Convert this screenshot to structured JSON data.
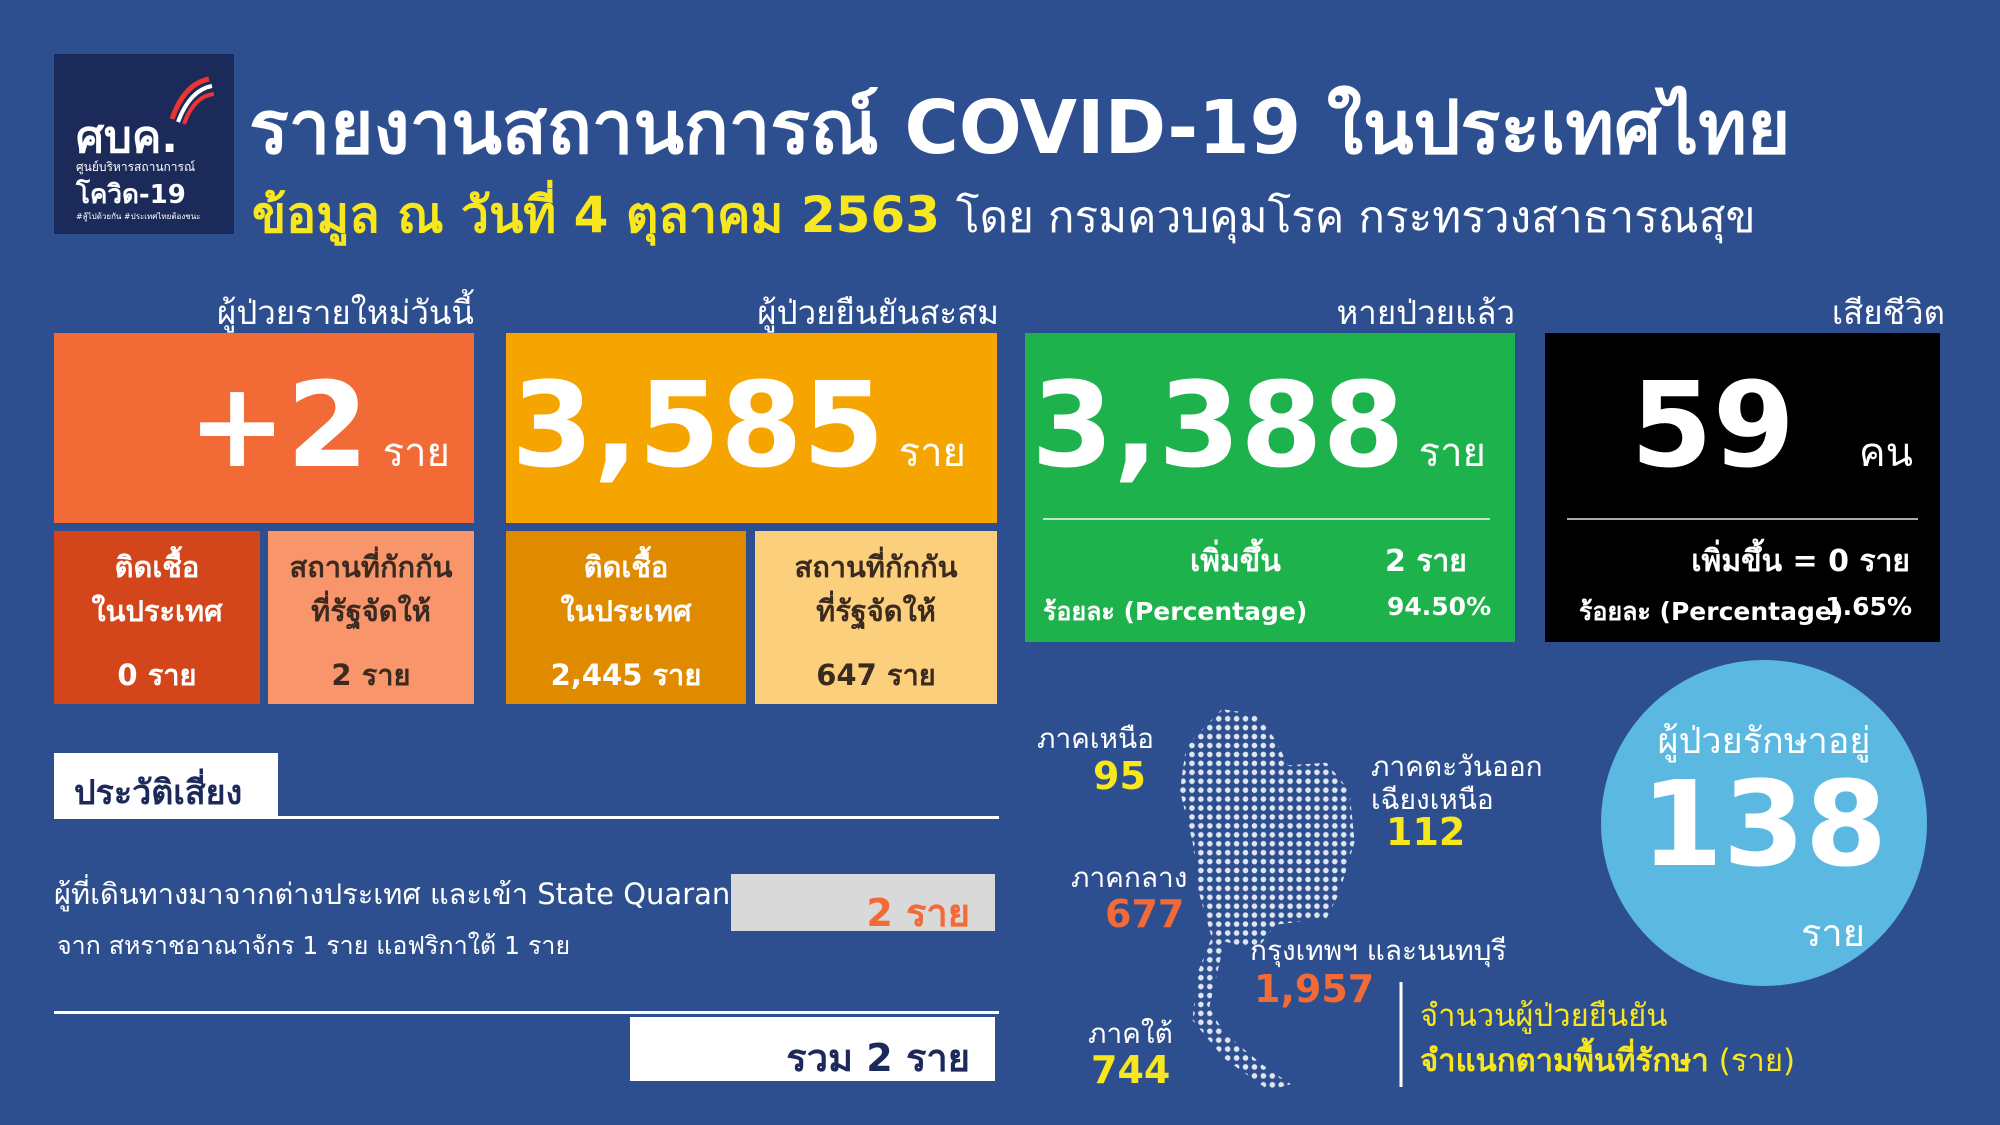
{
  "header": {
    "logo": {
      "title": "ศบค.",
      "subtitle": "ศูนย์บริหารสถานการณ์",
      "name": "โควิด-19",
      "tagline": "#สู้ไปด้วยกัน #ประเทศไทยต้องชนะ"
    },
    "title": "รายงานสถานการณ์ COVID-19 ในประเทศไทย",
    "date": "ข้อมูล ณ วันที่ 4 ตุลาคม 2563",
    "source": "โดย กรมควบคุมโรค กระทรวงสาธารณสุข"
  },
  "new_cases": {
    "label": "ผู้ป่วยรายใหม่วันนี้",
    "value": "+2",
    "unit": "ราย",
    "breakdown": [
      {
        "label": [
          "ติดเชื้อ",
          "ในประเทศ"
        ],
        "value": "0 ราย"
      },
      {
        "label": [
          "สถานที่กักกัน",
          "ที่รัฐจัดให้"
        ],
        "value": "2 ราย"
      }
    ]
  },
  "confirmed": {
    "label": "ผู้ป่วยยืนยันสะสม",
    "value": "3,585",
    "unit": "ราย",
    "breakdown": [
      {
        "label": [
          "ติดเชื้อ",
          "ในประเทศ"
        ],
        "value": "2,445 ราย"
      },
      {
        "label": [
          "สถานที่กักกัน",
          "ที่รัฐจัดให้"
        ],
        "value": "647 ราย"
      }
    ]
  },
  "recovered": {
    "label": "หายป่วยแล้ว",
    "value": "3,388",
    "unit": "ราย",
    "increase_label": "เพิ่มขึ้น",
    "increase": "2 ราย",
    "percent_label": "ร้อยละ (Percentage)",
    "percent": "94.50%"
  },
  "deaths": {
    "label": "เสียชีวิต",
    "value": "59",
    "unit": "คน",
    "increase": "เพิ่มขึ้น = 0 ราย",
    "percent_label": "ร้อยละ (Percentage)",
    "percent": "1.65%"
  },
  "risk": {
    "title": "ประวัติเสี่ยง",
    "item": "ผู้ที่เดินทางมาจากต่างประเทศ และเข้า State Quarantine",
    "item_value": "2 ราย",
    "item_detail": "จาก สหราชอาณาจักร 1 ราย แอฟริกาใต้ 1 ราย",
    "total": "รวม 2 ราย"
  },
  "regions": {
    "items": [
      {
        "name": [
          "ภาคเหนือ"
        ],
        "value": "95"
      },
      {
        "name": [
          "ภาคตะวันออก",
          "เฉียงเหนือ"
        ],
        "value": "112"
      },
      {
        "name": [
          "ภาคกลาง"
        ],
        "value": "677"
      },
      {
        "name": [
          "กรุงเทพฯ และนนทบุรี"
        ],
        "value": "1,957"
      },
      {
        "name": [
          "ภาคใต้"
        ],
        "value": "744"
      }
    ],
    "caption": [
      "จำนวนผู้ป่วยยืนยัน",
      "จำแนกตามพื้นที่รักษา",
      "(ราย)"
    ]
  },
  "treating": {
    "label": "ผู้ป่วยรักษาอยู่",
    "value": "138",
    "unit": "ราย"
  }
}
